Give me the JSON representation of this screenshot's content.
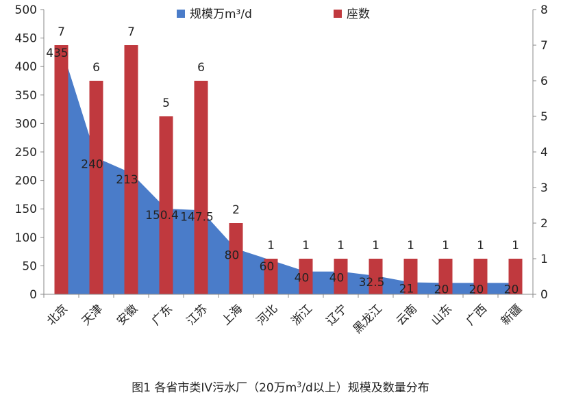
{
  "chart_data": {
    "type": "bar+area",
    "categories": [
      "北京",
      "天津",
      "安徽",
      "广东",
      "江苏",
      "上海",
      "河北",
      "浙江",
      "辽宁",
      "黑龙江",
      "云南",
      "山东",
      "广西",
      "新疆"
    ],
    "series": [
      {
        "name": "规模万m³/d",
        "kind": "area",
        "axis": "left",
        "values": [
          435,
          240,
          213,
          150.4,
          147.5,
          80,
          60,
          40,
          40,
          32.5,
          21,
          20,
          20,
          20
        ],
        "labels": [
          "435",
          "240",
          "213",
          "150.4",
          "147.5",
          "80",
          "60",
          "40",
          "40",
          "32.5",
          "21",
          "20",
          "20",
          "20"
        ]
      },
      {
        "name": "座数",
        "kind": "bar",
        "axis": "right",
        "values": [
          7,
          6,
          7,
          5,
          6,
          2,
          1,
          1,
          1,
          1,
          1,
          1,
          1,
          1
        ],
        "labels": [
          "7",
          "6",
          "7",
          "5",
          "6",
          "2",
          "1",
          "1",
          "1",
          "1",
          "1",
          "1",
          "1",
          "1"
        ]
      }
    ],
    "left_axis": {
      "min": 0,
      "max": 500,
      "ticks": [
        "0",
        "50",
        "100",
        "150",
        "200",
        "250",
        "300",
        "350",
        "400",
        "450",
        "500"
      ]
    },
    "right_axis": {
      "min": 0,
      "max": 8,
      "ticks": [
        "0",
        "1",
        "2",
        "3",
        "4",
        "5",
        "6",
        "7",
        "8"
      ]
    },
    "legend": {
      "position": "top",
      "items": [
        "规模万m³/d",
        "座数"
      ]
    },
    "colors": {
      "area": "#4a7cc9",
      "bar": "#c0393e"
    },
    "caption_prefix": "图1 各省市类IV污水厂（20万m",
    "caption_sup": "3",
    "caption_suffix": "/d以上）规模及数量分布"
  }
}
